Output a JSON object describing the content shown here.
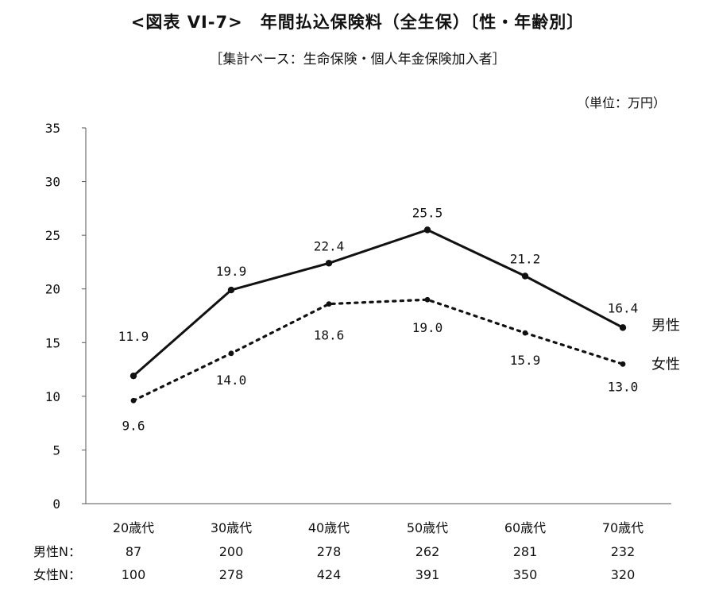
{
  "chart_data": {
    "type": "line",
    "title": "<図表 VI-7>　年間払込保険料（全生保）〔性・年齢別〕",
    "subtitle": "［集計ベース：生命保険・個人年金保険加入者］",
    "unit": "（単位：万円）",
    "categories": [
      "20歳代",
      "30歳代",
      "40歳代",
      "50歳代",
      "60歳代",
      "70歳代"
    ],
    "ylim": [
      0,
      35
    ],
    "yticks": [
      0,
      5,
      10,
      15,
      20,
      25,
      30,
      35
    ],
    "grid": false,
    "series": [
      {
        "name": "男性",
        "style": "solid",
        "values": [
          11.9,
          19.9,
          22.4,
          25.5,
          21.2,
          16.4
        ],
        "labels": [
          "11.9",
          "19.9",
          "22.4",
          "25.5",
          "21.2",
          "16.4"
        ]
      },
      {
        "name": "女性",
        "style": "dotted",
        "values": [
          9.6,
          14.0,
          18.6,
          19.0,
          15.9,
          13.0
        ],
        "labels": [
          "9.6",
          "14.0",
          "18.6",
          "19.0",
          "15.9",
          "13.0"
        ]
      }
    ],
    "sample_sizes": [
      {
        "label": "男性N：",
        "values": [
          "87",
          "200",
          "278",
          "262",
          "281",
          "232"
        ]
      },
      {
        "label": "女性N：",
        "values": [
          "100",
          "278",
          "424",
          "391",
          "350",
          "320"
        ]
      }
    ]
  },
  "colors": {
    "line": "#111111",
    "axis": "#555555"
  }
}
